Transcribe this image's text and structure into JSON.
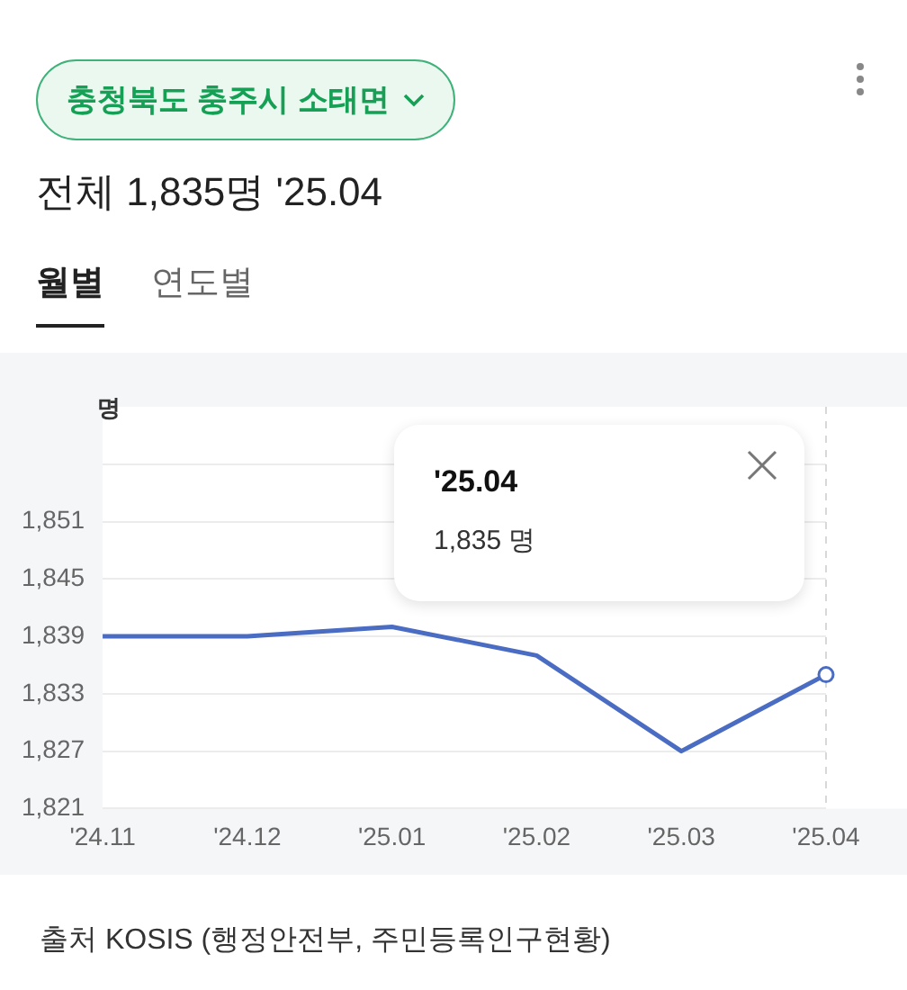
{
  "chart_data": {
    "type": "line",
    "title": "충청북도 충주시 소태면",
    "subtitle": "전체 1,835명 '25.04",
    "ylabel": "명",
    "categories": [
      "'24.11",
      "'24.12",
      "'25.01",
      "'25.02",
      "'25.03",
      "'25.04"
    ],
    "series": [
      {
        "color": "#4a6cc2",
        "values": [
          1839,
          1839,
          1840,
          1837,
          1827,
          1835
        ]
      }
    ],
    "ylim": [
      1821,
      1863
    ],
    "yticks": [
      {
        "value": 1821,
        "label": "1,821"
      },
      {
        "value": 1827,
        "label": "1,827"
      },
      {
        "value": 1833,
        "label": "1,833"
      },
      {
        "value": 1839,
        "label": "1,839"
      },
      {
        "value": 1845,
        "label": "1,845"
      },
      {
        "value": 1851,
        "label": "1,851"
      },
      {
        "value": 1857,
        "label": null
      }
    ],
    "grid": "y",
    "legend": false,
    "marker": "none",
    "line_style": "solid",
    "ref_lines": [
      {
        "axis": "x",
        "value": "'25.04",
        "color": "#d8d8d8",
        "line_style": "dashed"
      }
    ],
    "annotations": [
      "월별",
      "연도별",
      "'25.04",
      "1,835 명",
      "출처 KOSIS (행정안전부, 주민등록인구현황)"
    ]
  }
}
